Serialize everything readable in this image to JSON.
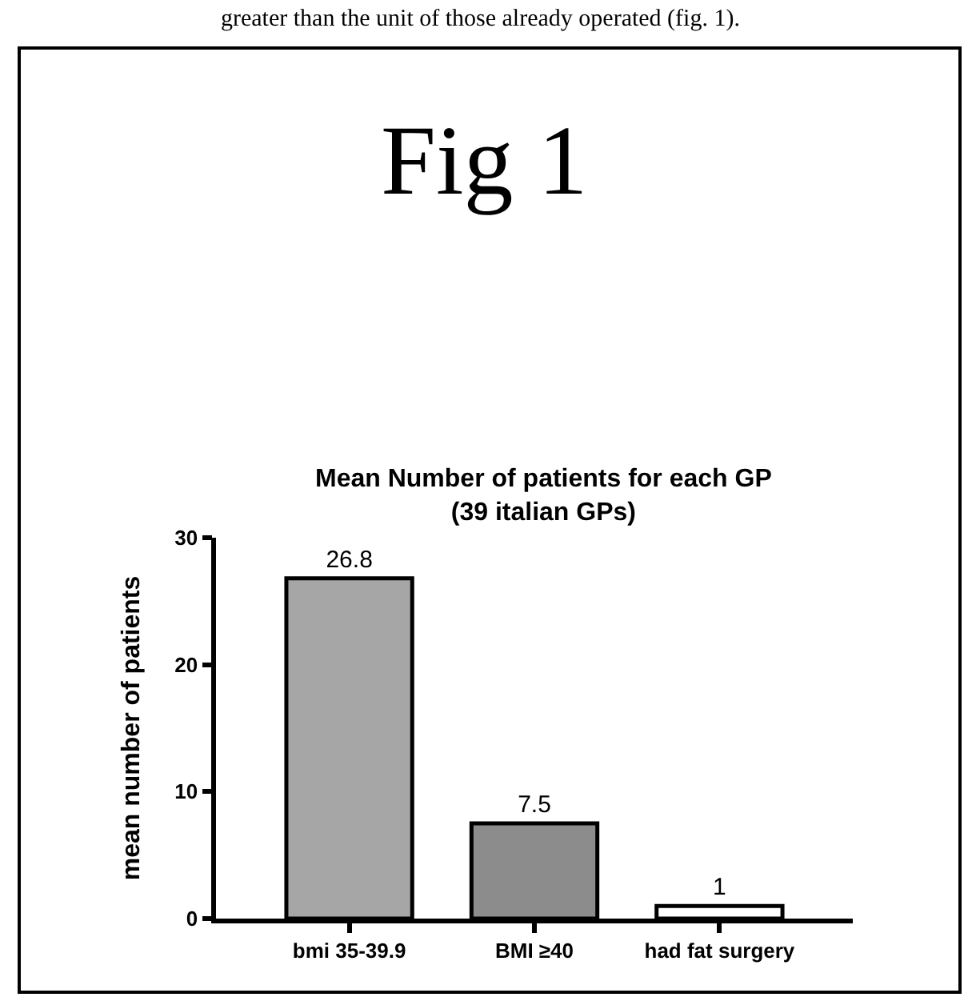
{
  "chart_data": {
    "type": "bar",
    "title": "Fig 1",
    "subtitle": "Mean Number of patients for each GP\n(39 italian GPs)",
    "ylabel": "mean number of patients",
    "annotations": [
      "greater than the unit of those already operated (fig. 1)."
    ],
    "categories": [
      "bmi 35-39.9",
      "BMI ≥40",
      "had fat surgery"
    ],
    "values": [
      26.8,
      7.5,
      1
    ],
    "colors": [
      "#a6a6a6",
      "#8c8c8c",
      "#ffffff"
    ],
    "ylim": [
      0,
      30
    ],
    "yticks": [
      0,
      10,
      20,
      30
    ],
    "data_labels": true,
    "grid": false,
    "legend": false
  }
}
